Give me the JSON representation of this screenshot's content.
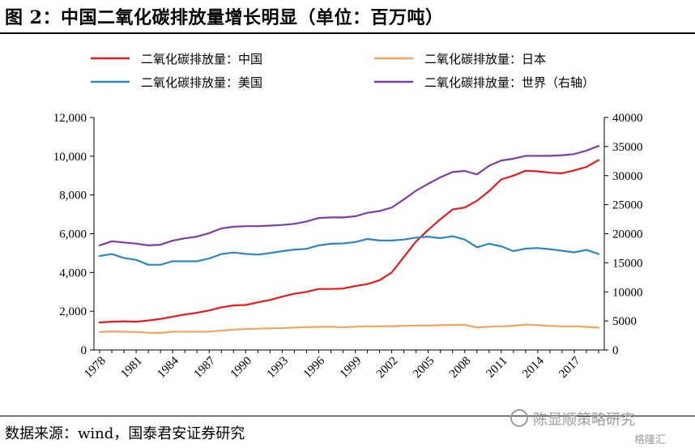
{
  "page": {
    "title": "图 2：中国二氧化碳排放量增长明显（单位：百万吨）",
    "source": "数据来源：wind，国泰君安证券研究",
    "watermark": "陈显顺策略研究",
    "watermark_corner": "格隆汇"
  },
  "chart_data": {
    "type": "line",
    "title": "图 2：中国二氧化碳排放量增长明显（单位：百万吨）",
    "x": [
      1978,
      1979,
      1980,
      1981,
      1982,
      1983,
      1984,
      1985,
      1986,
      1987,
      1988,
      1989,
      1990,
      1991,
      1992,
      1993,
      1994,
      1995,
      1996,
      1997,
      1998,
      1999,
      2000,
      2001,
      2002,
      2003,
      2004,
      2005,
      2006,
      2007,
      2008,
      2009,
      2010,
      2011,
      2012,
      2013,
      2014,
      2015,
      2016,
      2017,
      2018,
      2019
    ],
    "x_tick_labels": [
      "1978",
      "1981",
      "1984",
      "1987",
      "1990",
      "1993",
      "1996",
      "1999",
      "2002",
      "2005",
      "2008",
      "2011",
      "2014",
      "2017"
    ],
    "y_left": {
      "lim": [
        0,
        12000
      ],
      "tick_labels": [
        "0",
        "2,000",
        "4,000",
        "6,000",
        "8,000",
        "10,000",
        "12,000"
      ]
    },
    "y_right": {
      "lim": [
        0,
        40000
      ],
      "tick_labels": [
        "0",
        "5000",
        "10000",
        "15000",
        "20000",
        "25000",
        "30000",
        "35000",
        "40000"
      ]
    },
    "grid": false,
    "legend_placement": "top",
    "series": [
      {
        "name": "二氧化碳排放量：中国",
        "color": "#e41a1c",
        "axis": "left",
        "values": [
          1420,
          1460,
          1480,
          1460,
          1520,
          1600,
          1720,
          1830,
          1920,
          2040,
          2200,
          2300,
          2320,
          2460,
          2580,
          2750,
          2900,
          3000,
          3150,
          3150,
          3170,
          3300,
          3400,
          3600,
          4000,
          4800,
          5600,
          6200,
          6750,
          7250,
          7350,
          7700,
          8200,
          8800,
          9000,
          9250,
          9220,
          9150,
          9120,
          9270,
          9450,
          9800
        ]
      },
      {
        "name": "二氧化碳排放量：日本",
        "color": "#f4a460",
        "axis": "left",
        "values": [
          930,
          960,
          940,
          930,
          890,
          880,
          940,
          950,
          940,
          950,
          1000,
          1050,
          1080,
          1100,
          1120,
          1130,
          1160,
          1180,
          1190,
          1200,
          1170,
          1200,
          1220,
          1220,
          1230,
          1250,
          1260,
          1260,
          1280,
          1290,
          1300,
          1160,
          1200,
          1220,
          1250,
          1310,
          1280,
          1240,
          1220,
          1220,
          1190,
          1150
        ]
      },
      {
        "name": "二氧化碳排放量：美国",
        "color": "#2e86c1",
        "axis": "left",
        "values": [
          4850,
          4950,
          4750,
          4650,
          4400,
          4400,
          4580,
          4580,
          4580,
          4720,
          4950,
          5030,
          4960,
          4920,
          5000,
          5100,
          5180,
          5220,
          5400,
          5480,
          5500,
          5570,
          5730,
          5650,
          5650,
          5700,
          5800,
          5850,
          5770,
          5870,
          5700,
          5300,
          5480,
          5350,
          5100,
          5230,
          5260,
          5200,
          5120,
          5040,
          5170,
          4950
        ]
      },
      {
        "name": "二氧化碳排放量：世界（右轴）",
        "color": "#7b3fa0",
        "axis": "right",
        "values": [
          18000,
          18700,
          18500,
          18300,
          18000,
          18100,
          18800,
          19200,
          19500,
          20100,
          20900,
          21200,
          21300,
          21300,
          21400,
          21500,
          21700,
          22100,
          22700,
          22800,
          22800,
          23000,
          23600,
          23900,
          24500,
          25900,
          27400,
          28600,
          29700,
          30600,
          30800,
          30200,
          31700,
          32600,
          32900,
          33400,
          33400,
          33400,
          33500,
          33700,
          34300,
          35100
        ]
      }
    ]
  }
}
